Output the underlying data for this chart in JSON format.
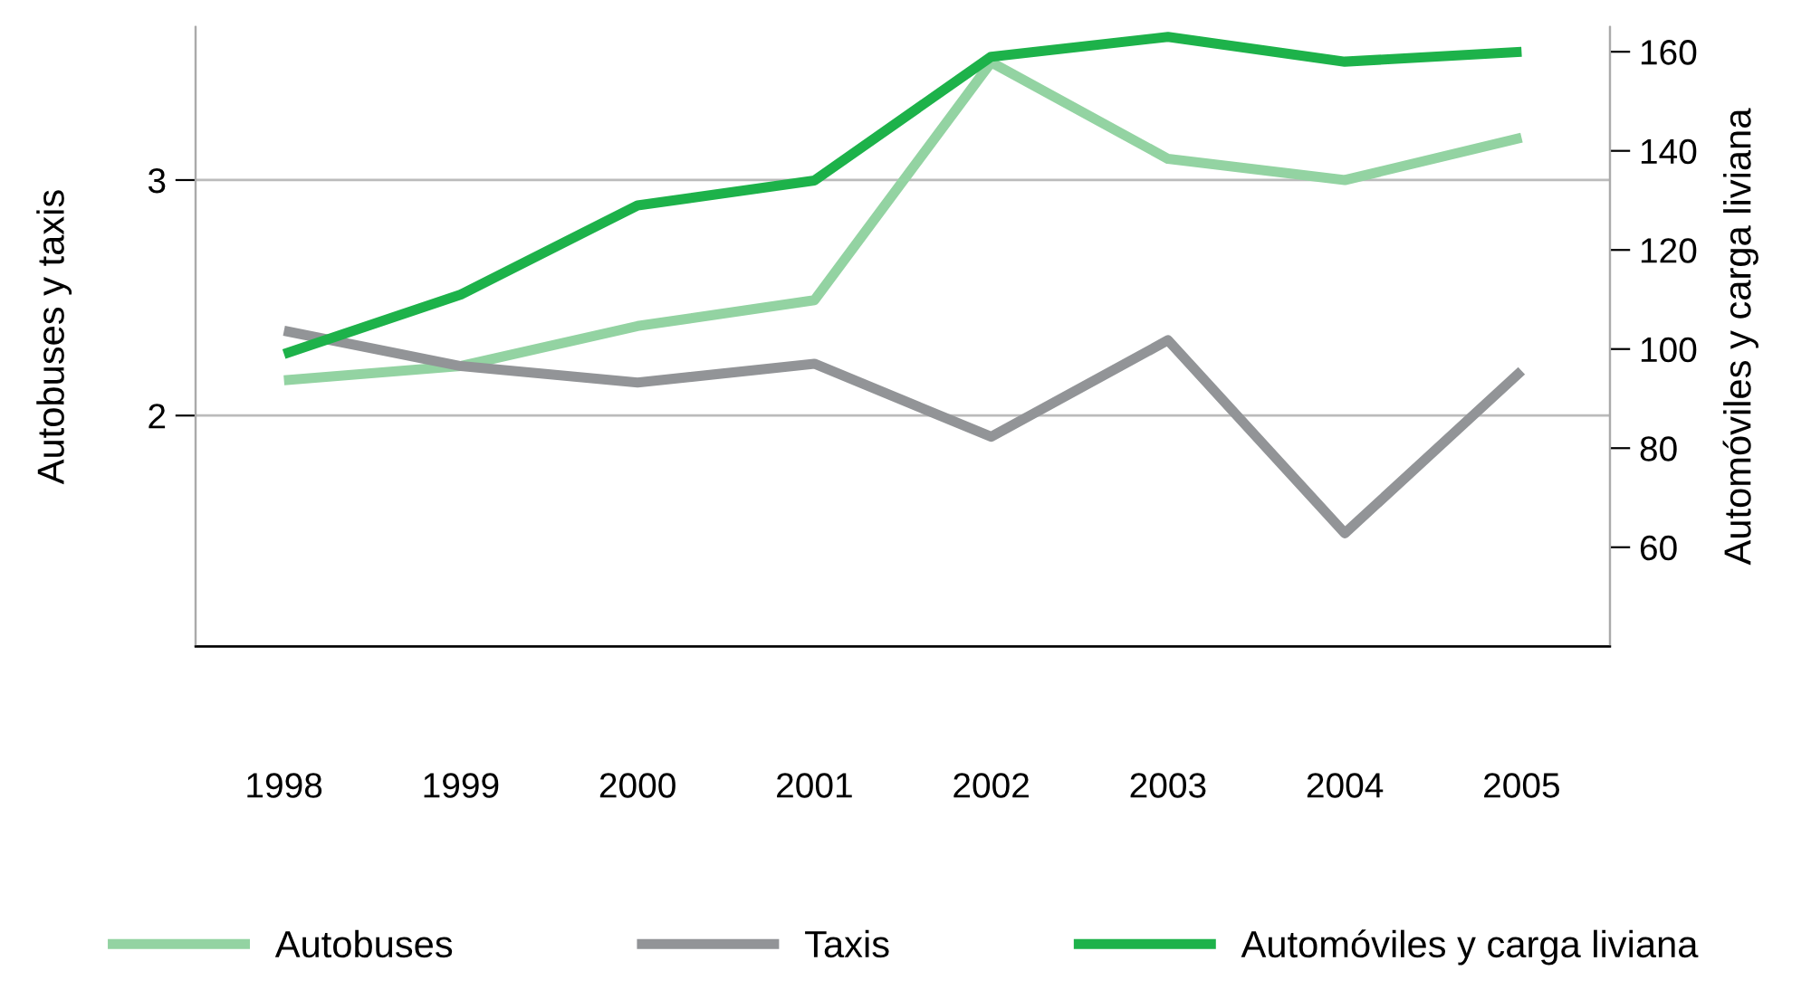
{
  "chart_data": {
    "type": "line",
    "ylabel": "Autobuses y taxis",
    "y2label": "Automóviles y carga liviana",
    "categories": [
      "1998",
      "1999",
      "2000",
      "2001",
      "2002",
      "2003",
      "2004",
      "2005"
    ],
    "series": [
      {
        "name": "Autobuses",
        "color": "#93d3a2",
        "values": [
          2.15,
          2.21,
          2.38,
          2.49,
          3.5,
          3.09,
          3.0,
          3.18
        ]
      },
      {
        "name": "Taxis",
        "color": "#929497",
        "values": [
          2.36,
          2.21,
          2.14,
          2.22,
          1.91,
          2.32,
          1.5,
          2.19
        ]
      },
      {
        "name": "Automóviles y carga liviana",
        "color": "#1db24a",
        "axis": "y2",
        "values": [
          99,
          111,
          129,
          134,
          159,
          163,
          158,
          160
        ]
      }
    ],
    "ylim": [
      1.02,
      3.65
    ],
    "yticks": [
      2,
      3
    ],
    "y2lim": [
      40,
      165
    ],
    "y2ticks": [
      60,
      80,
      100,
      120,
      140,
      160
    ],
    "grid": "y",
    "legend": "bottom",
    "marker": "none",
    "line_style": "solid"
  }
}
